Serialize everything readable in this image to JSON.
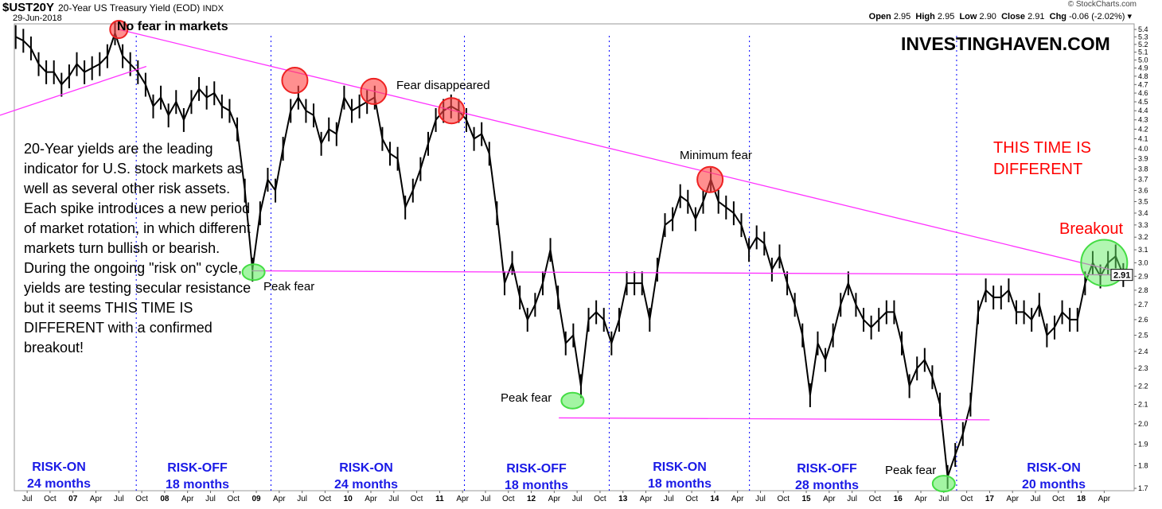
{
  "header": {
    "symbol": "$UST20Y",
    "description": "20-Year US Treasury Yield (EOD)",
    "exchange": "INDX",
    "date": "29-Jun-2018",
    "credit": "© StockCharts.com",
    "open_label": "Open",
    "open": "2.95",
    "high_label": "High",
    "high": "2.95",
    "low_label": "Low",
    "low": "2.90",
    "close_label": "Close",
    "close": "2.91",
    "chg_label": "Chg",
    "chg": "-0.06 (-2.02%)"
  },
  "watermark": "INVESTINGHAVEN.COM",
  "headline": "THIS TIME IS DIFFERENT",
  "note": "20-Year yields are the leading indicator for U.S. stock markets as well as several other risk assets. Each spike introduces a new period of market rotation, in which different markets turn bullish or bearish. During the ongoing \"risk on\" cycle, yields are testing secular resistance but it seems THIS TIME IS DIFFERENT with a confirmed breakout!",
  "annotations": {
    "no_fear": "No fear in markets",
    "fear_disappeared": "Fear disappeared",
    "minimum_fear": "Minimum fear",
    "peak_fear_1": "Peak fear",
    "peak_fear_2": "Peak fear",
    "peak_fear_3": "Peak fear",
    "breakout": "Breakout"
  },
  "regimes": [
    {
      "label": "RISK-ON",
      "duration": "24 months"
    },
    {
      "label": "RISK-OFF",
      "duration": "18 months"
    },
    {
      "label": "RISK-ON",
      "duration": "24 months"
    },
    {
      "label": "RISK-OFF",
      "duration": "18 months"
    },
    {
      "label": "RISK-ON",
      "duration": "18 months"
    },
    {
      "label": "RISK-OFF",
      "duration": "28 months"
    },
    {
      "label": "RISK-ON",
      "duration": "20 months"
    }
  ],
  "colors": {
    "price": "#000000",
    "trendline": "#ff33ff",
    "regime_divider": "#0000ff",
    "fear_circle": "#ff4444",
    "calm_circle": "#66ee66",
    "regime_text": "#1a1ae6",
    "headline": "#ff0000"
  },
  "chart_data": {
    "type": "line",
    "title": "$UST20Y 20-Year US Treasury Yield (EOD) INDX",
    "y_scale": "log",
    "ylim": [
      1.68,
      5.45
    ],
    "y_ticks": [
      "5.4",
      "5.3",
      "5.2",
      "5.1",
      "5.0",
      "4.9",
      "4.8",
      "4.7",
      "4.6",
      "4.5",
      "4.4",
      "4.3",
      "4.2",
      "4.1",
      "4.0",
      "3.9",
      "3.8",
      "3.7",
      "3.6",
      "3.5",
      "3.4",
      "3.3",
      "3.2",
      "3.1",
      "3.0",
      "2.9",
      "2.8",
      "2.7",
      "2.6",
      "2.5",
      "2.4",
      "2.3",
      "2.2",
      "2.1",
      "2.0",
      "1.9",
      "1.8",
      "1.7"
    ],
    "last_value_label": "2.91",
    "x_ticks": [
      "Jul",
      "Oct",
      "07",
      "Apr",
      "Jul",
      "Oct",
      "08",
      "Apr",
      "Jul",
      "Oct",
      "09",
      "Apr",
      "Jul",
      "Oct",
      "10",
      "Apr",
      "Jul",
      "Oct",
      "11",
      "Apr",
      "Jul",
      "Oct",
      "12",
      "Apr",
      "Jul",
      "Oct",
      "13",
      "Apr",
      "Jul",
      "Oct",
      "14",
      "Apr",
      "Jul",
      "Oct",
      "15",
      "Apr",
      "Jul",
      "Oct",
      "16",
      "Apr",
      "Jul",
      "Oct",
      "17",
      "Apr",
      "Jul",
      "Oct",
      "18",
      "Apr"
    ],
    "xlim": [
      "2006-05",
      "2018-06"
    ],
    "series": [
      {
        "values": [
          [
            "2006-05",
            5.3
          ],
          [
            "2006-06",
            5.25
          ],
          [
            "2006-07",
            5.15
          ],
          [
            "2006-08",
            4.95
          ],
          [
            "2006-09",
            4.85
          ],
          [
            "2006-10",
            4.85
          ],
          [
            "2006-11",
            4.7
          ],
          [
            "2006-12",
            4.8
          ],
          [
            "2007-01",
            4.95
          ],
          [
            "2007-02",
            4.85
          ],
          [
            "2007-03",
            4.9
          ],
          [
            "2007-04",
            4.95
          ],
          [
            "2007-05",
            5.05
          ],
          [
            "2007-06",
            5.35
          ],
          [
            "2007-07",
            5.05
          ],
          [
            "2007-08",
            4.95
          ],
          [
            "2007-09",
            4.85
          ],
          [
            "2007-10",
            4.7
          ],
          [
            "2007-11",
            4.45
          ],
          [
            "2007-12",
            4.55
          ],
          [
            "2008-01",
            4.35
          ],
          [
            "2008-02",
            4.5
          ],
          [
            "2008-03",
            4.3
          ],
          [
            "2008-04",
            4.5
          ],
          [
            "2008-05",
            4.65
          ],
          [
            "2008-06",
            4.55
          ],
          [
            "2008-07",
            4.6
          ],
          [
            "2008-08",
            4.45
          ],
          [
            "2008-09",
            4.4
          ],
          [
            "2008-10",
            4.2
          ],
          [
            "2008-11",
            3.6
          ],
          [
            "2008-12",
            2.95
          ],
          [
            "2009-01",
            3.4
          ],
          [
            "2009-02",
            3.7
          ],
          [
            "2009-03",
            3.6
          ],
          [
            "2009-04",
            4.0
          ],
          [
            "2009-05",
            4.4
          ],
          [
            "2009-06",
            4.55
          ],
          [
            "2009-07",
            4.4
          ],
          [
            "2009-08",
            4.35
          ],
          [
            "2009-09",
            4.05
          ],
          [
            "2009-10",
            4.2
          ],
          [
            "2009-11",
            4.15
          ],
          [
            "2009-12",
            4.55
          ],
          [
            "2010-01",
            4.4
          ],
          [
            "2010-02",
            4.45
          ],
          [
            "2010-03",
            4.5
          ],
          [
            "2010-04",
            4.55
          ],
          [
            "2010-05",
            4.1
          ],
          [
            "2010-06",
            3.95
          ],
          [
            "2010-07",
            3.9
          ],
          [
            "2010-08",
            3.45
          ],
          [
            "2010-09",
            3.6
          ],
          [
            "2010-10",
            3.8
          ],
          [
            "2010-11",
            4.05
          ],
          [
            "2010-12",
            4.3
          ],
          [
            "2011-01",
            4.4
          ],
          [
            "2011-02",
            4.45
          ],
          [
            "2011-03",
            4.4
          ],
          [
            "2011-04",
            4.3
          ],
          [
            "2011-05",
            4.1
          ],
          [
            "2011-06",
            4.15
          ],
          [
            "2011-07",
            3.95
          ],
          [
            "2011-08",
            3.4
          ],
          [
            "2011-09",
            2.85
          ],
          [
            "2011-10",
            3.0
          ],
          [
            "2011-11",
            2.75
          ],
          [
            "2011-12",
            2.6
          ],
          [
            "2012-01",
            2.7
          ],
          [
            "2012-02",
            2.85
          ],
          [
            "2012-03",
            3.1
          ],
          [
            "2012-04",
            2.75
          ],
          [
            "2012-05",
            2.45
          ],
          [
            "2012-06",
            2.5
          ],
          [
            "2012-07",
            2.2
          ],
          [
            "2012-08",
            2.6
          ],
          [
            "2012-09",
            2.65
          ],
          [
            "2012-10",
            2.6
          ],
          [
            "2012-11",
            2.45
          ],
          [
            "2012-12",
            2.6
          ],
          [
            "2013-01",
            2.85
          ],
          [
            "2013-02",
            2.85
          ],
          [
            "2013-03",
            2.85
          ],
          [
            "2013-04",
            2.6
          ],
          [
            "2013-05",
            2.95
          ],
          [
            "2013-06",
            3.3
          ],
          [
            "2013-07",
            3.35
          ],
          [
            "2013-08",
            3.55
          ],
          [
            "2013-09",
            3.5
          ],
          [
            "2013-10",
            3.35
          ],
          [
            "2013-11",
            3.5
          ],
          [
            "2013-12",
            3.7
          ],
          [
            "2014-01",
            3.5
          ],
          [
            "2014-02",
            3.45
          ],
          [
            "2014-03",
            3.4
          ],
          [
            "2014-04",
            3.3
          ],
          [
            "2014-05",
            3.1
          ],
          [
            "2014-06",
            3.2
          ],
          [
            "2014-07",
            3.15
          ],
          [
            "2014-08",
            2.95
          ],
          [
            "2014-09",
            3.05
          ],
          [
            "2014-10",
            2.85
          ],
          [
            "2014-11",
            2.7
          ],
          [
            "2014-12",
            2.5
          ],
          [
            "2015-01",
            2.15
          ],
          [
            "2015-02",
            2.45
          ],
          [
            "2015-03",
            2.35
          ],
          [
            "2015-04",
            2.5
          ],
          [
            "2015-05",
            2.7
          ],
          [
            "2015-06",
            2.85
          ],
          [
            "2015-07",
            2.7
          ],
          [
            "2015-08",
            2.6
          ],
          [
            "2015-09",
            2.55
          ],
          [
            "2015-10",
            2.6
          ],
          [
            "2015-11",
            2.65
          ],
          [
            "2015-12",
            2.65
          ],
          [
            "2016-01",
            2.45
          ],
          [
            "2016-02",
            2.2
          ],
          [
            "2016-03",
            2.3
          ],
          [
            "2016-04",
            2.35
          ],
          [
            "2016-05",
            2.25
          ],
          [
            "2016-06",
            2.1
          ],
          [
            "2016-07",
            1.75
          ],
          [
            "2016-08",
            1.85
          ],
          [
            "2016-09",
            1.95
          ],
          [
            "2016-10",
            2.1
          ],
          [
            "2016-11",
            2.65
          ],
          [
            "2016-12",
            2.8
          ],
          [
            "2017-01",
            2.75
          ],
          [
            "2017-02",
            2.75
          ],
          [
            "2017-03",
            2.8
          ],
          [
            "2017-04",
            2.65
          ],
          [
            "2017-05",
            2.65
          ],
          [
            "2017-06",
            2.6
          ],
          [
            "2017-07",
            2.7
          ],
          [
            "2017-08",
            2.5
          ],
          [
            "2017-09",
            2.55
          ],
          [
            "2017-10",
            2.65
          ],
          [
            "2017-11",
            2.6
          ],
          [
            "2017-12",
            2.6
          ],
          [
            "2018-01",
            2.85
          ],
          [
            "2018-02",
            3.0
          ],
          [
            "2018-03",
            2.9
          ],
          [
            "2018-04",
            3.0
          ],
          [
            "2018-05",
            3.05
          ],
          [
            "2018-06",
            2.91
          ]
        ]
      }
    ],
    "trendlines": [
      {
        "from": [
          2007.5,
          5.4
        ],
        "to": [
          2018.49,
          2.92
        ]
      },
      {
        "from": [
          2006.0,
          4.35
        ],
        "to": [
          2007.8,
          4.92
        ]
      },
      {
        "from": [
          2008.95,
          2.94
        ],
        "to": [
          2018.49,
          2.91
        ]
      },
      {
        "from": [
          2012.3,
          2.03
        ],
        "to": [
          2017.0,
          2.02
        ]
      }
    ],
    "regime_dividers": [
      2007.69,
      2009.16,
      2011.27,
      2012.85,
      2014.38,
      2016.64
    ],
    "fear_circles": [
      [
        2007.5,
        5.4
      ],
      [
        2009.42,
        4.75
      ],
      [
        2010.28,
        4.62
      ],
      [
        2011.13,
        4.4
      ],
      [
        2013.95,
        3.7
      ]
    ],
    "calm_circles": [
      [
        2008.97,
        2.93
      ],
      [
        2012.45,
        2.12
      ],
      [
        2016.5,
        1.72
      ]
    ],
    "breakout_circle": [
      2018.25,
      3.0
    ]
  }
}
